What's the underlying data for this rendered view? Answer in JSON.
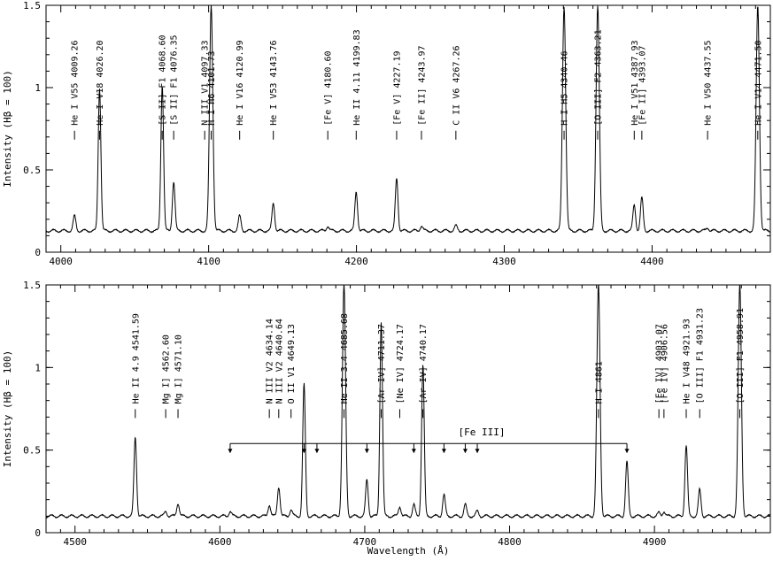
{
  "chart_data": [
    {
      "type": "line",
      "panel": "top",
      "xlabel": "",
      "ylabel": "Intensity (Hβ = 100)",
      "xlim": [
        3990,
        4480
      ],
      "ylim": [
        0,
        1.5
      ],
      "xticks": [
        "4000",
        "4100",
        "4200",
        "4300",
        "4400"
      ],
      "yticks": [
        "0",
        "0.5",
        "1",
        "1.5"
      ],
      "continuum": 0.13,
      "peaks": [
        {
          "x": 4009.26,
          "h": 0.22
        },
        {
          "x": 4026.2,
          "h": 1.0
        },
        {
          "x": 4068.6,
          "h": 1.02
        },
        {
          "x": 4076.35,
          "h": 0.43
        },
        {
          "x": 4101.73,
          "h": 1.5
        },
        {
          "x": 4120.99,
          "h": 0.22
        },
        {
          "x": 4143.76,
          "h": 0.3
        },
        {
          "x": 4180.6,
          "h": 0.16
        },
        {
          "x": 4199.83,
          "h": 0.37
        },
        {
          "x": 4227.19,
          "h": 0.45
        },
        {
          "x": 4243.97,
          "h": 0.16
        },
        {
          "x": 4267.26,
          "h": 0.16
        },
        {
          "x": 4340.46,
          "h": 1.5
        },
        {
          "x": 4363.21,
          "h": 1.5
        },
        {
          "x": 4387.93,
          "h": 0.29
        },
        {
          "x": 4393.07,
          "h": 0.33
        },
        {
          "x": 4437.55,
          "h": 0.15
        },
        {
          "x": 4471.5,
          "h": 1.5
        }
      ],
      "labels": [
        {
          "x": 4009.26,
          "text": "He I V55 4009.26"
        },
        {
          "x": 4026.2,
          "text": "He I V18 4026.20"
        },
        {
          "x": 4068.6,
          "text": "[S II] F1 4068.60"
        },
        {
          "x": 4076.35,
          "text": "[S II] F1 4076.35"
        },
        {
          "x": 4097.33,
          "text": "N III V1 4097.33"
        },
        {
          "x": 4101.73,
          "text": "H I H6 4101.73"
        },
        {
          "x": 4120.99,
          "text": "He I V16 4120.99"
        },
        {
          "x": 4143.76,
          "text": "He I V53 4143.76"
        },
        {
          "x": 4180.6,
          "text": "[Fe V] 4180.60"
        },
        {
          "x": 4199.83,
          "text": "He II 4.11 4199.83"
        },
        {
          "x": 4227.19,
          "text": "[Fe V] 4227.19"
        },
        {
          "x": 4243.97,
          "text": "[Fe II] 4243.97"
        },
        {
          "x": 4267.26,
          "text": "C II V6 4267.26"
        },
        {
          "x": 4340.46,
          "text": "H I H5 4340.46"
        },
        {
          "x": 4363.21,
          "text": "[O III] F2 4363.21"
        },
        {
          "x": 4387.93,
          "text": "He I V51 4387.93"
        },
        {
          "x": 4393.07,
          "text": "[Fe II] 4393.07"
        },
        {
          "x": 4437.55,
          "text": "He I V50 4437.55"
        },
        {
          "x": 4471.5,
          "text": "He I V14 4471.50"
        }
      ]
    },
    {
      "type": "line",
      "panel": "bottom",
      "xlabel": "Wavelength (Å)",
      "ylabel": "Intensity (Hβ = 100)",
      "xlim": [
        4480,
        4980
      ],
      "ylim": [
        0,
        1.5
      ],
      "xticks": [
        "4500",
        "4600",
        "4700",
        "4800",
        "4900"
      ],
      "yticks": [
        "0",
        "0.5",
        "1",
        "1.5"
      ],
      "continuum": 0.1,
      "peaks": [
        {
          "x": 4541.59,
          "h": 0.58
        },
        {
          "x": 4562.6,
          "h": 0.13
        },
        {
          "x": 4571.1,
          "h": 0.18
        },
        {
          "x": 4607.1,
          "h": 0.13
        },
        {
          "x": 4634.14,
          "h": 0.17
        },
        {
          "x": 4640.64,
          "h": 0.28
        },
        {
          "x": 4649.13,
          "h": 0.14
        },
        {
          "x": 4658.1,
          "h": 0.9
        },
        {
          "x": 4685.68,
          "h": 1.5
        },
        {
          "x": 4701.5,
          "h": 0.32
        },
        {
          "x": 4711.37,
          "h": 1.28
        },
        {
          "x": 4724.17,
          "h": 0.16
        },
        {
          "x": 4733.9,
          "h": 0.17
        },
        {
          "x": 4740.17,
          "h": 1.02
        },
        {
          "x": 4754.7,
          "h": 0.23
        },
        {
          "x": 4769.4,
          "h": 0.17
        },
        {
          "x": 4777.7,
          "h": 0.13
        },
        {
          "x": 4861.33,
          "h": 1.5
        },
        {
          "x": 4881.0,
          "h": 0.43
        },
        {
          "x": 4903.07,
          "h": 0.12
        },
        {
          "x": 4906.56,
          "h": 0.13
        },
        {
          "x": 4921.93,
          "h": 0.53
        },
        {
          "x": 4931.23,
          "h": 0.26
        },
        {
          "x": 4958.91,
          "h": 1.5
        }
      ],
      "labels": [
        {
          "x": 4541.59,
          "text": "He II 4.9 4541.59"
        },
        {
          "x": 4562.6,
          "text": "Mg I] 4562.60"
        },
        {
          "x": 4571.1,
          "text": "Mg I] 4571.10"
        },
        {
          "x": 4634.14,
          "text": "N III V2 4634.14"
        },
        {
          "x": 4640.64,
          "text": "N III V2 4640.64"
        },
        {
          "x": 4649.13,
          "text": "O II V1 4649.13"
        },
        {
          "x": 4685.68,
          "text": "He II 3.4 4685.68"
        },
        {
          "x": 4711.37,
          "text": "[Ar IV] 4711.37"
        },
        {
          "x": 4724.17,
          "text": "[Ne IV] 4724.17"
        },
        {
          "x": 4740.17,
          "text": "[Ar IV] 4740.17"
        },
        {
          "x": 4861.33,
          "text": "H I 4861"
        },
        {
          "x": 4903.07,
          "text": "[Fe IV] 4903.07"
        },
        {
          "x": 4906.56,
          "text": "[Fe IV] 4906.56"
        },
        {
          "x": 4921.93,
          "text": "He I V48 4921.93"
        },
        {
          "x": 4931.23,
          "text": "[O III] F1 4931.23"
        },
        {
          "x": 4958.91,
          "text": "[O III] F1 4958.91"
        }
      ],
      "bracket": {
        "label": "[Fe III]",
        "y": 0.54,
        "markers": [
          4607.1,
          4658.1,
          4667.0,
          4701.5,
          4733.9,
          4754.7,
          4769.4,
          4777.7,
          4881.0
        ]
      }
    }
  ]
}
